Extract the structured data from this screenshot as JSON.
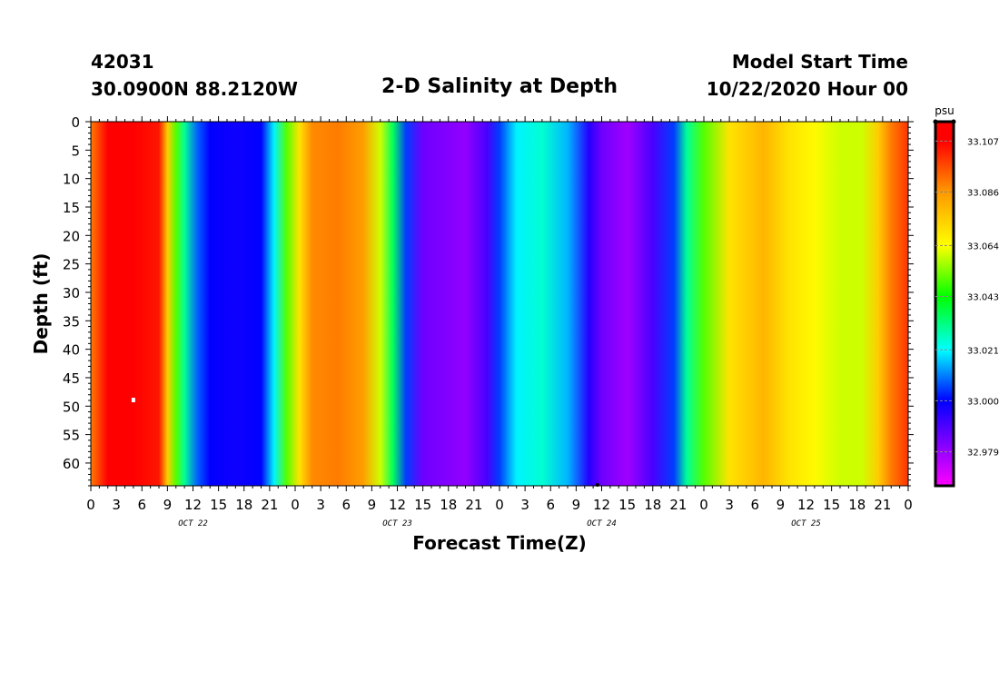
{
  "header": {
    "station_id": "42031",
    "station_location": "30.0900N 88.2120W",
    "title": "2-D Salinity at Depth",
    "start_label": "Model Start Time",
    "start_time": "10/22/2020 Hour 00"
  },
  "chart_data": {
    "type": "heatmap",
    "title": "2-D Salinity at Depth",
    "xlabel": "Forecast Time(Z)",
    "ylabel": "Depth (ft)",
    "x_tick_labels": [
      "0",
      "3",
      "6",
      "9",
      "12",
      "15",
      "18",
      "21",
      "0",
      "3",
      "6",
      "9",
      "12",
      "15",
      "18",
      "21",
      "0",
      "3",
      "6",
      "9",
      "12",
      "15",
      "18",
      "21",
      "0",
      "3",
      "6",
      "9",
      "12",
      "15",
      "18",
      "21",
      "0"
    ],
    "x_day_labels": [
      "OCT 22",
      "OCT 23",
      "OCT 24",
      "OCT 25"
    ],
    "xlim_hours": [
      0,
      96
    ],
    "y_tick_labels": [
      "0",
      "5",
      "10",
      "15",
      "20",
      "25",
      "30",
      "35",
      "40",
      "45",
      "50",
      "55",
      "60"
    ],
    "ylim_ft": [
      0,
      64
    ],
    "colorbar": {
      "unit": "psu",
      "tick_labels": [
        "33.107",
        "33.086",
        "33.064",
        "33.043",
        "33.021",
        "33.000",
        "32.979"
      ],
      "range": [
        32.965,
        33.115
      ],
      "stops": [
        {
          "value": 32.965,
          "color": "#ff00ff"
        },
        {
          "value": 32.979,
          "color": "#9900ff"
        },
        {
          "value": 33.0,
          "color": "#0000ff"
        },
        {
          "value": 33.021,
          "color": "#00ffff"
        },
        {
          "value": 33.043,
          "color": "#00ff00"
        },
        {
          "value": 33.064,
          "color": "#ffff00"
        },
        {
          "value": 33.086,
          "color": "#ff9900"
        },
        {
          "value": 33.107,
          "color": "#ff0000"
        },
        {
          "value": 33.115,
          "color": "#ff0000"
        }
      ]
    },
    "surface_salinity_by_hour": [
      [
        0,
        33.09
      ],
      [
        2,
        33.108
      ],
      [
        5,
        33.11
      ],
      [
        8,
        33.104
      ],
      [
        9,
        33.075
      ],
      [
        10,
        33.05
      ],
      [
        11,
        33.03
      ],
      [
        12.5,
        33.008
      ],
      [
        14,
        33.0
      ],
      [
        17,
        32.998
      ],
      [
        20,
        33.0
      ],
      [
        21.5,
        33.02
      ],
      [
        23,
        33.05
      ],
      [
        24.5,
        33.07
      ],
      [
        26,
        33.088
      ],
      [
        29,
        33.09
      ],
      [
        32,
        33.085
      ],
      [
        34,
        33.06
      ],
      [
        35.5,
        33.035
      ],
      [
        37,
        33.005
      ],
      [
        39,
        32.985
      ],
      [
        44,
        32.98
      ],
      [
        46.5,
        32.99
      ],
      [
        48,
        33.005
      ],
      [
        50,
        33.02
      ],
      [
        53,
        33.025
      ],
      [
        56,
        33.015
      ],
      [
        58.5,
        32.995
      ],
      [
        60,
        32.985
      ],
      [
        63,
        32.978
      ],
      [
        66,
        32.99
      ],
      [
        68.5,
        33.005
      ],
      [
        70,
        33.03
      ],
      [
        72,
        33.05
      ],
      [
        75,
        33.07
      ],
      [
        79,
        33.08
      ],
      [
        82,
        33.07
      ],
      [
        85,
        33.065
      ],
      [
        88,
        33.06
      ],
      [
        90.5,
        33.06
      ],
      [
        92.5,
        33.075
      ],
      [
        94,
        33.09
      ],
      [
        96,
        33.1
      ]
    ],
    "grid": false
  }
}
